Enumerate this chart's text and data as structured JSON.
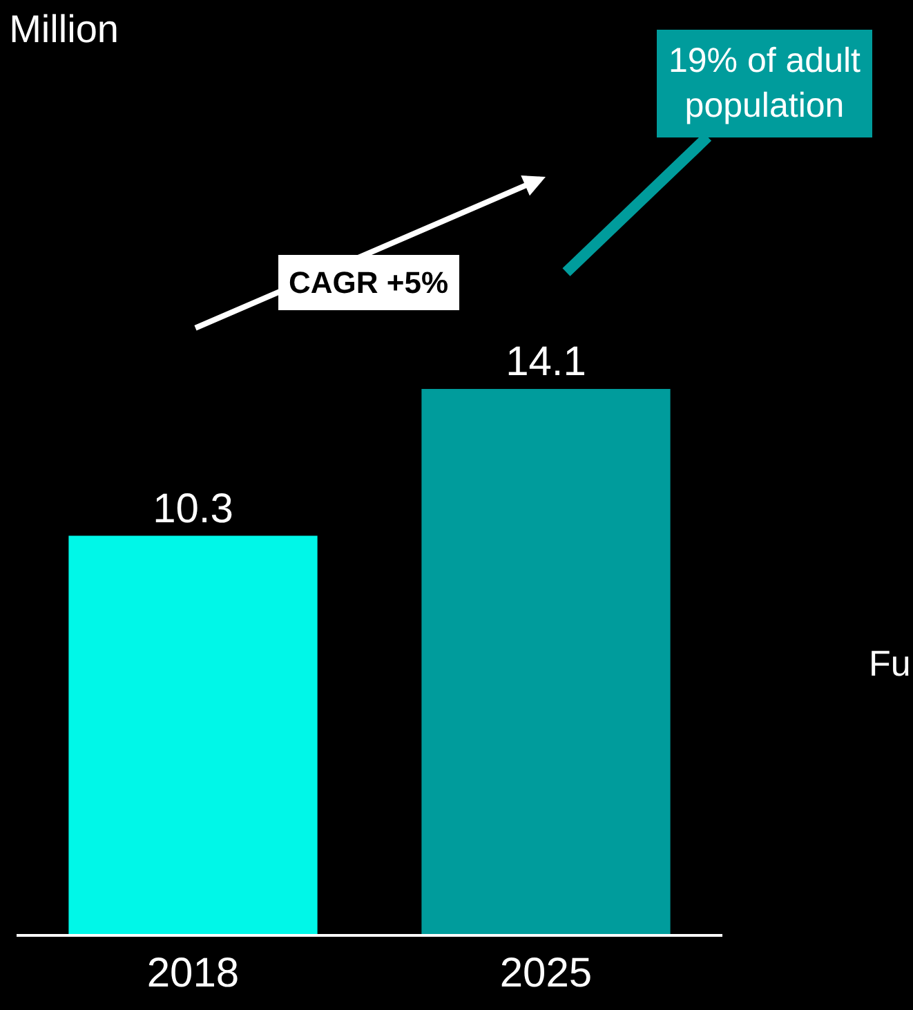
{
  "chart_data": {
    "type": "bar",
    "title": "Million",
    "categories": [
      "2018",
      "2025"
    ],
    "values": [
      10.3,
      14.1
    ],
    "colors": [
      "#00f7e8",
      "#009c9c"
    ],
    "data_labels": true,
    "grid": false,
    "legend": false,
    "annotations": [
      "CAGR +5%",
      "19% of adult population",
      "Fu"
    ]
  }
}
